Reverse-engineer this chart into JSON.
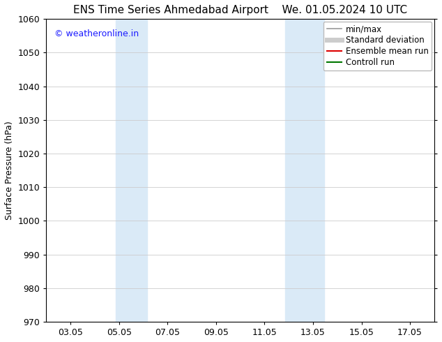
{
  "title_left": "ENS Time Series Ahmedabad Airport",
  "title_right": "We. 01.05.2024 10 UTC",
  "ylabel": "Surface Pressure (hPa)",
  "ylim": [
    970,
    1060
  ],
  "yticks": [
    970,
    980,
    990,
    1000,
    1010,
    1020,
    1030,
    1040,
    1050,
    1060
  ],
  "xlim": [
    1.0,
    17.0
  ],
  "xtick_labels": [
    "03.05",
    "05.05",
    "07.05",
    "09.05",
    "11.05",
    "13.05",
    "15.05",
    "17.05"
  ],
  "xtick_positions": [
    2,
    4,
    6,
    8,
    10,
    12,
    14,
    16
  ],
  "shaded_bands": [
    {
      "x_start": 3.85,
      "x_end": 5.15,
      "color": "#daeaf7"
    },
    {
      "x_start": 10.85,
      "x_end": 12.45,
      "color": "#daeaf7"
    }
  ],
  "watermark_text": "© weatheronline.in",
  "watermark_color": "#1a1aff",
  "legend_entries": [
    {
      "label": "min/max",
      "color": "#999999",
      "lw": 1.2
    },
    {
      "label": "Standard deviation",
      "color": "#cccccc",
      "lw": 5
    },
    {
      "label": "Ensemble mean run",
      "color": "#dd0000",
      "lw": 1.5
    },
    {
      "label": "Controll run",
      "color": "#007700",
      "lw": 1.5
    }
  ],
  "background_color": "#ffffff",
  "plot_bg_color": "#ffffff",
  "grid_color": "#cccccc",
  "tick_color": "#000000",
  "spine_color": "#000000",
  "title_fontsize": 11,
  "axis_label_fontsize": 9,
  "tick_fontsize": 9,
  "legend_fontsize": 8.5,
  "watermark_fontsize": 9
}
